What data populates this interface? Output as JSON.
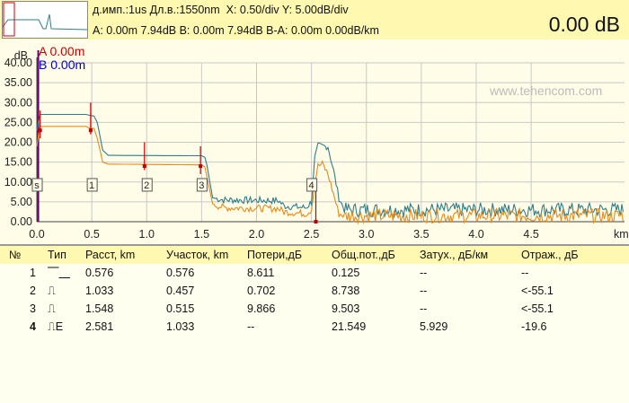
{
  "header": {
    "line1": "д.имп.:1us Дл.в.:1550nm  X: 0.50/div Y: 5.00dB/div",
    "line2": "A: 0.00m 7.94dB B: 0.00m 7.94dB B-A: 0.00m 0.00dB/km",
    "big_value": "0.00 dB"
  },
  "watermark": "www.tehencom.com",
  "chart": {
    "unit_y": "dB",
    "unit_x": "km",
    "marker_a": "A 0.00m",
    "marker_b": "B 0.00m",
    "colors": {
      "trace_a": "#2e7d8a",
      "trace_b": "#e88a1a",
      "marker_a": "#cc0000",
      "marker_b": "#0000cc",
      "event_line": "#c00000"
    }
  },
  "chart_data": {
    "type": "line",
    "xlabel": "km",
    "ylabel": "dB",
    "xlim": [
      0,
      5.35
    ],
    "ylim": [
      0,
      40
    ],
    "x_ticks": [
      "0.0",
      "0.5",
      "1.0",
      "1.5",
      "2.0",
      "2.5",
      "3.0",
      "3.5",
      "4.0",
      "4.5",
      "km"
    ],
    "y_ticks": [
      "40.00",
      "35.00",
      "30.00",
      "25.00",
      "20.00",
      "15.00",
      "10.00",
      "5.00",
      "0.00"
    ],
    "event_labels": [
      "s",
      "1",
      "2",
      "3",
      "4"
    ],
    "event_x": [
      0.0,
      0.5,
      1.0,
      1.5,
      2.5
    ],
    "event_marks": [
      {
        "x": 0.03,
        "y": 23,
        "top": 28,
        "bottom": 21
      },
      {
        "x": 0.49,
        "y": 23,
        "top": 30,
        "bottom": 22
      },
      {
        "x": 0.98,
        "y": 14,
        "top": 20,
        "bottom": 13
      },
      {
        "x": 1.49,
        "y": 14,
        "top": 19,
        "bottom": 12
      },
      {
        "x": 2.54,
        "y": 0,
        "top": 8,
        "bottom": 0
      }
    ],
    "series": [
      {
        "color": "#2e7d8a",
        "points": [
          [
            0,
            23
          ],
          [
            0.03,
            27
          ],
          [
            0.45,
            27
          ],
          [
            0.48,
            26.8
          ],
          [
            0.52,
            26.6
          ],
          [
            0.55,
            25
          ],
          [
            0.6,
            18
          ],
          [
            0.65,
            16.7
          ],
          [
            1.5,
            16.6
          ],
          [
            1.53,
            16.2
          ],
          [
            1.55,
            14
          ],
          [
            1.6,
            6
          ],
          [
            1.7,
            5.5
          ],
          [
            2.2,
            5.3
          ],
          [
            2.25,
            4
          ],
          [
            2.45,
            3.5
          ],
          [
            2.5,
            5
          ],
          [
            2.53,
            16
          ],
          [
            2.56,
            19
          ],
          [
            2.65,
            19
          ],
          [
            2.7,
            13
          ],
          [
            2.75,
            6
          ],
          [
            2.8,
            3
          ],
          [
            5.35,
            3
          ]
        ]
      },
      {
        "color": "#e88a1a",
        "points": [
          [
            0,
            19
          ],
          [
            0.03,
            24
          ],
          [
            0.45,
            24
          ],
          [
            0.48,
            23.5
          ],
          [
            0.52,
            23.5
          ],
          [
            0.55,
            21
          ],
          [
            0.6,
            15
          ],
          [
            0.65,
            14.5
          ],
          [
            1.5,
            14.3
          ],
          [
            1.53,
            13.8
          ],
          [
            1.55,
            11
          ],
          [
            1.6,
            4.5
          ],
          [
            1.7,
            3.5
          ],
          [
            2.2,
            3.3
          ],
          [
            2.25,
            2.5
          ],
          [
            2.45,
            2
          ],
          [
            2.5,
            3
          ],
          [
            2.53,
            10
          ],
          [
            2.56,
            14
          ],
          [
            2.6,
            14.5
          ],
          [
            2.65,
            12
          ],
          [
            2.7,
            7
          ],
          [
            2.75,
            2
          ],
          [
            2.8,
            1.5
          ],
          [
            5.35,
            1.5
          ]
        ]
      }
    ]
  },
  "table": {
    "headers": [
      "№",
      "Тип",
      "Расст, km",
      "Участок, km",
      "Потери,дБ",
      "Общ.пот.,дБ",
      "Затух., дБ/км",
      "Отраж., дБ"
    ],
    "rows": [
      {
        "no": "1",
        "type": "⎺⎽",
        "dist": "0.576",
        "section": "0.576",
        "loss": "8.611",
        "total": "0.125",
        "att": "--",
        "refl": "--"
      },
      {
        "no": "2",
        "type": "⎍",
        "dist": "1.033",
        "section": "0.457",
        "loss": "0.702",
        "total": "8.738",
        "att": "--",
        "refl": "<-55.1"
      },
      {
        "no": "3",
        "type": "⎍",
        "dist": "1.548",
        "section": "0.515",
        "loss": "9.866",
        "total": "9.503",
        "att": "--",
        "refl": "<-55.1"
      },
      {
        "no": "4",
        "type": "⎍E",
        "dist": "2.581",
        "section": "1.033",
        "loss": "--",
        "total": "21.549",
        "att": "5.929",
        "refl": "-19.6"
      }
    ]
  }
}
